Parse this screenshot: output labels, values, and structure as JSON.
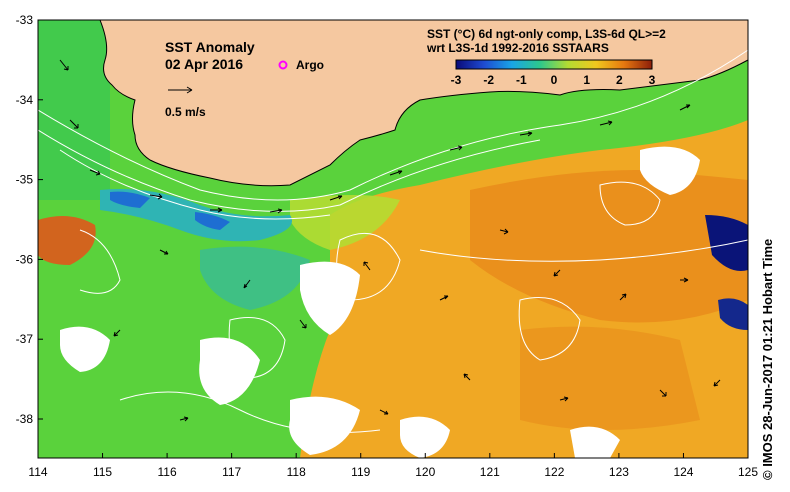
{
  "title": "SST Anomaly",
  "date": "02 Apr 2016",
  "argo_label": "Argo",
  "scale_label": "0.5 m/s",
  "product_line1": "SST (°C) 6d ngt-only comp, L3S-6d QL>=2",
  "product_line2": "wrt L3S-1d 1992-2016 SSTAARS",
  "colorbar": {
    "ticks": [
      "-3",
      "-2",
      "-1",
      "0",
      "1",
      "2",
      "3"
    ],
    "colors": [
      "#0a0a78",
      "#1e4bd2",
      "#19a5e6",
      "#2dc88c",
      "#b4dc32",
      "#f0c81e",
      "#e6780f",
      "#8c1e0a"
    ]
  },
  "axes": {
    "lon_ticks": [
      "114",
      "115",
      "116",
      "117",
      "118",
      "119",
      "120",
      "121",
      "122",
      "123",
      "124",
      "125"
    ],
    "lat_ticks": [
      "-33",
      "-34",
      "-35",
      "-36",
      "-37",
      "-38"
    ]
  },
  "credit": "© IMOS 28-Jun-2017 01:21 Hobart Time",
  "colors": {
    "land": "#f5c8a0",
    "coast": "#000000",
    "contour": "#ffffff",
    "argo": "#ff00ff"
  }
}
